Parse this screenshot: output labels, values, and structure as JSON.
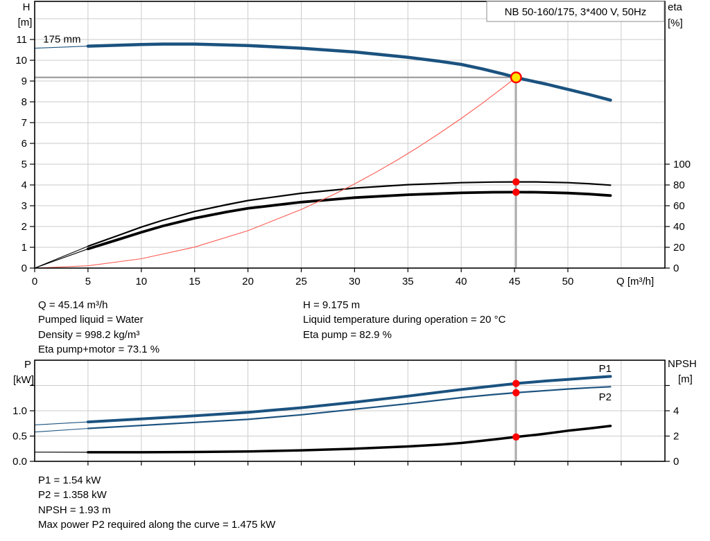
{
  "style": {
    "grid": "#cbcbcb",
    "duty_line": "#9e9e9e",
    "frame": "#000000",
    "marker_red": "#ff0000",
    "duty_fill": "#ffe400",
    "curve_blue": "#1b527f",
    "curve_black": "#000000",
    "system_red": "#fb5a50",
    "label_blue": "#24598a"
  },
  "chart_data": [
    {
      "type": "line",
      "name": "hq-eta-chart",
      "title": "NB 50-160/175, 3*400 V, 50Hz",
      "axes_titles": {
        "left": [
          "H",
          "[m]"
        ],
        "right": [
          "eta",
          "[%]"
        ],
        "x": "Q [m³/h]"
      },
      "x_axis": {
        "min": 0,
        "max": 59.1,
        "unit": "m³/h"
      },
      "y_left": {
        "min": 0,
        "max": 12.8,
        "unit": "m"
      },
      "y_right": {
        "min": 0,
        "max": 257,
        "unit": "%"
      },
      "x_grid": [
        5,
        10,
        15,
        20,
        25,
        30,
        35,
        40,
        45,
        50,
        55
      ],
      "y_grid": [
        1,
        2,
        3,
        4,
        5,
        6,
        7,
        8,
        9,
        10,
        11,
        12
      ],
      "x_ticks": [
        [
          0,
          "0"
        ],
        [
          5,
          "5"
        ],
        [
          10,
          "10"
        ],
        [
          15,
          "15"
        ],
        [
          20,
          "20"
        ],
        [
          25,
          "25"
        ],
        [
          30,
          "30"
        ],
        [
          35,
          "35"
        ],
        [
          40,
          "40"
        ],
        [
          45,
          "45"
        ],
        [
          50,
          "50"
        ]
      ],
      "left_ticks": [
        [
          0,
          "0"
        ],
        [
          1,
          "1"
        ],
        [
          2,
          "2"
        ],
        [
          3,
          "3"
        ],
        [
          4,
          "4"
        ],
        [
          5,
          "5"
        ],
        [
          6,
          "6"
        ],
        [
          7,
          "7"
        ],
        [
          8,
          "8"
        ],
        [
          9,
          "9"
        ],
        [
          10,
          "10"
        ],
        [
          11,
          "11"
        ]
      ],
      "right_ticks": [
        [
          0,
          "0"
        ],
        [
          20,
          "20"
        ],
        [
          40,
          "40"
        ],
        [
          60,
          "60"
        ],
        [
          80,
          "80"
        ],
        [
          100,
          "100"
        ]
      ],
      "duty_lines": [
        {
          "dir": "h",
          "v": 9.175,
          "q1": 0,
          "q2": 45.14
        },
        {
          "dir": "v",
          "q": 45.14,
          "axis": "left",
          "v1": 0,
          "v2": 9.175
        }
      ],
      "series": [
        {
          "name": "head-curve-ext",
          "color": "#1b527f",
          "width": 1.1,
          "axis": "left",
          "points": [
            [
              0,
              10.58
            ],
            [
              3,
              10.64
            ],
            [
              5,
              10.68
            ]
          ]
        },
        {
          "name": "head-curve-175mm",
          "color": "#1b527f",
          "width": 4.5,
          "axis": "left",
          "points": [
            [
              5,
              10.68
            ],
            [
              10,
              10.76
            ],
            [
              12,
              10.78
            ],
            [
              15,
              10.78
            ],
            [
              20,
              10.71
            ],
            [
              25,
              10.58
            ],
            [
              30,
              10.4
            ],
            [
              35,
              10.14
            ],
            [
              38,
              9.95
            ],
            [
              40,
              9.8
            ],
            [
              42,
              9.58
            ],
            [
              44,
              9.33
            ],
            [
              45.14,
              9.175
            ],
            [
              46,
              9.07
            ],
            [
              48,
              8.85
            ],
            [
              50,
              8.6
            ],
            [
              52,
              8.35
            ],
            [
              54,
              8.08
            ]
          ]
        },
        {
          "name": "eta-pump-ext",
          "color": "#000000",
          "width": 1.1,
          "axis": "right",
          "points": [
            [
              0,
              0
            ],
            [
              5,
              21
            ]
          ]
        },
        {
          "name": "eta-pump",
          "color": "#000000",
          "width": 2.2,
          "axis": "right",
          "points": [
            [
              5,
              21
            ],
            [
              8,
              32
            ],
            [
              10,
              39.5
            ],
            [
              12,
              46
            ],
            [
              15,
              54.5
            ],
            [
              18,
              61
            ],
            [
              20,
              65
            ],
            [
              25,
              72
            ],
            [
              30,
              77
            ],
            [
              35,
              80.3
            ],
            [
              40,
              82.2
            ],
            [
              43,
              82.8
            ],
            [
              45.14,
              82.9
            ],
            [
              47,
              82.9
            ],
            [
              50,
              82.2
            ],
            [
              52,
              81.2
            ],
            [
              54,
              79.8
            ]
          ]
        },
        {
          "name": "eta-pump-motor-ext",
          "color": "#000000",
          "width": 1.1,
          "axis": "right",
          "points": [
            [
              0,
              0
            ],
            [
              5,
              18.5
            ]
          ]
        },
        {
          "name": "eta-pump-motor",
          "color": "#000000",
          "width": 3.8,
          "axis": "right",
          "points": [
            [
              5,
              18.5
            ],
            [
              8,
              28
            ],
            [
              10,
              34.5
            ],
            [
              12,
              40.5
            ],
            [
              15,
              48
            ],
            [
              18,
              54
            ],
            [
              20,
              57.5
            ],
            [
              25,
              63.5
            ],
            [
              30,
              67.8
            ],
            [
              35,
              70.6
            ],
            [
              40,
              72.4
            ],
            [
              43,
              73
            ],
            [
              45.14,
              73.1
            ],
            [
              47,
              73
            ],
            [
              50,
              72.2
            ],
            [
              52,
              71.2
            ],
            [
              54,
              69.8
            ]
          ]
        },
        {
          "name": "system-curve",
          "color": "#fb5a50",
          "width": 1.1,
          "axis": "left",
          "points": [
            [
              0,
              0
            ],
            [
              5,
              0.11
            ],
            [
              10,
              0.45
            ],
            [
              15,
              1.01
            ],
            [
              20,
              1.8
            ],
            [
              25,
              2.82
            ],
            [
              28,
              3.53
            ],
            [
              30,
              4.05
            ],
            [
              32,
              4.61
            ],
            [
              34,
              5.2
            ],
            [
              36,
              5.83
            ],
            [
              38,
              6.5
            ],
            [
              40,
              7.2
            ],
            [
              42,
              7.94
            ],
            [
              44,
              8.72
            ],
            [
              45.14,
              9.175
            ]
          ]
        }
      ],
      "labels": [
        {
          "text": "175 mm",
          "q": 0.8,
          "axis": "left",
          "v": 10.85,
          "anchor": "start",
          "color": "#000000"
        }
      ],
      "markers": [
        {
          "q": 45.14,
          "axis": "right",
          "v": 82.9,
          "style": "dot"
        },
        {
          "q": 45.14,
          "axis": "right",
          "v": 73.1,
          "style": "dot"
        },
        {
          "q": 45.14,
          "axis": "left",
          "v": 9.175,
          "style": "duty"
        }
      ],
      "duty_point": {
        "q": 45.14,
        "h": 9.175,
        "eta_pump": 82.9,
        "eta_pump_motor": 73.1
      }
    },
    {
      "type": "line",
      "name": "power-npsh-chart",
      "title": "",
      "axes_titles": {
        "left": [
          "P",
          "[kW]"
        ],
        "right": [
          "NPSH",
          "[m]"
        ],
        "x": ""
      },
      "x_axis": {
        "min": 0,
        "max": 59.1,
        "unit": "m³/h"
      },
      "y_left": {
        "min": 0,
        "max": 2.0,
        "unit": "kW"
      },
      "y_right": {
        "min": 0,
        "max": 8.0,
        "unit": "m"
      },
      "x_grid": [
        5,
        10,
        15,
        20,
        25,
        30,
        35,
        40,
        45,
        50,
        55
      ],
      "y_grid": [
        0.5,
        1.0,
        1.5
      ],
      "x_ticks": [
        [
          5,
          ""
        ],
        [
          10,
          ""
        ],
        [
          15,
          ""
        ],
        [
          20,
          ""
        ],
        [
          25,
          ""
        ],
        [
          30,
          ""
        ],
        [
          35,
          ""
        ],
        [
          40,
          ""
        ],
        [
          45,
          ""
        ],
        [
          50,
          ""
        ],
        [
          55,
          ""
        ]
      ],
      "left_ticks": [
        [
          0,
          "0.0"
        ],
        [
          0.5,
          "0.5"
        ],
        [
          1,
          "1.0"
        ],
        [
          1.5,
          ""
        ]
      ],
      "right_ticks": [
        [
          0,
          "0"
        ],
        [
          2,
          "2"
        ],
        [
          4,
          "4"
        ],
        [
          6,
          ""
        ]
      ],
      "duty_lines": [
        {
          "dir": "v",
          "q": 45.14,
          "axis": "left",
          "v1": 0,
          "v2": 2.0
        }
      ],
      "series": [
        {
          "name": "p1-ext",
          "color": "#1b527f",
          "width": 1.1,
          "axis": "left",
          "points": [
            [
              0,
              0.72
            ],
            [
              5,
              0.78
            ]
          ]
        },
        {
          "name": "p1-curve",
          "color": "#1b527f",
          "width": 4,
          "axis": "left",
          "points": [
            [
              5,
              0.78
            ],
            [
              10,
              0.84
            ],
            [
              15,
              0.9
            ],
            [
              20,
              0.97
            ],
            [
              25,
              1.06
            ],
            [
              30,
              1.17
            ],
            [
              35,
              1.29
            ],
            [
              40,
              1.42
            ],
            [
              43,
              1.49
            ],
            [
              45.14,
              1.54
            ],
            [
              48,
              1.59
            ],
            [
              50,
              1.62
            ],
            [
              52,
              1.65
            ],
            [
              54,
              1.68
            ]
          ]
        },
        {
          "name": "p2-ext",
          "color": "#1b527f",
          "width": 1.1,
          "axis": "left",
          "points": [
            [
              0,
              0.58
            ],
            [
              5,
              0.65
            ]
          ]
        },
        {
          "name": "p2-curve",
          "color": "#1b527f",
          "width": 2.2,
          "axis": "left",
          "points": [
            [
              5,
              0.65
            ],
            [
              10,
              0.71
            ],
            [
              15,
              0.77
            ],
            [
              20,
              0.83
            ],
            [
              25,
              0.92
            ],
            [
              30,
              1.03
            ],
            [
              35,
              1.14
            ],
            [
              40,
              1.26
            ],
            [
              43,
              1.32
            ],
            [
              45.14,
              1.358
            ],
            [
              48,
              1.4
            ],
            [
              50,
              1.43
            ],
            [
              52,
              1.455
            ],
            [
              54,
              1.475
            ]
          ]
        },
        {
          "name": "npsh-ext",
          "color": "#000000",
          "width": 1.2,
          "axis": "right",
          "points": [
            [
              0,
              0.73
            ],
            [
              5,
              0.72
            ]
          ]
        },
        {
          "name": "npsh-curve",
          "color": "#000000",
          "width": 3.5,
          "axis": "right",
          "points": [
            [
              5,
              0.72
            ],
            [
              10,
              0.72
            ],
            [
              15,
              0.74
            ],
            [
              20,
              0.78
            ],
            [
              25,
              0.87
            ],
            [
              30,
              1.0
            ],
            [
              35,
              1.18
            ],
            [
              38,
              1.32
            ],
            [
              40,
              1.45
            ],
            [
              42,
              1.63
            ],
            [
              44,
              1.82
            ],
            [
              45.14,
              1.93
            ],
            [
              47,
              2.1
            ],
            [
              48,
              2.2
            ],
            [
              50,
              2.42
            ],
            [
              52,
              2.6
            ],
            [
              54,
              2.8
            ]
          ]
        }
      ],
      "labels": [
        {
          "text": "P1",
          "q": 52.9,
          "axis": "left",
          "v": 1.767,
          "anchor": "start",
          "color": "#24598a"
        },
        {
          "text": "P2",
          "q": 52.9,
          "axis": "left",
          "v": 1.205,
          "anchor": "start",
          "color": "#24598a"
        }
      ],
      "markers": [
        {
          "q": 45.14,
          "axis": "left",
          "v": 1.54,
          "style": "dot"
        },
        {
          "q": 45.14,
          "axis": "left",
          "v": 1.358,
          "style": "dot"
        },
        {
          "q": 45.14,
          "axis": "right",
          "v": 1.93,
          "style": "dot"
        }
      ],
      "duty_point": {
        "q": 45.14,
        "p1": 1.54,
        "p2": 1.358,
        "npsh": 1.93
      }
    }
  ],
  "operating_point": {
    "col1": [
      "Q = 45.14 m³/h",
      "Pumped liquid = Water",
      "Density = 998.2 kg/m³",
      "Eta pump+motor = 73.1 %"
    ],
    "col2": [
      "H = 9.175 m",
      "Liquid temperature during operation = 20 °C",
      "Eta pump = 82.9 %"
    ]
  },
  "results": [
    "P1 = 1.54 kW",
    "P2 = 1.358 kW",
    "NPSH = 1.93 m",
    "Max power P2 required along the curve = 1.475 kW"
  ]
}
